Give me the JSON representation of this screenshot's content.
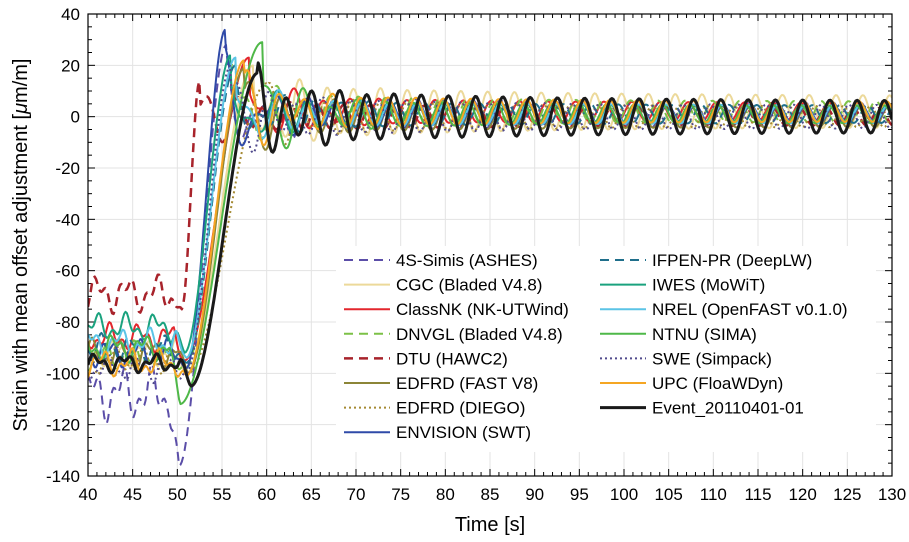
{
  "chart_data": {
    "type": "line",
    "title": "",
    "xlabel": "Time [s]",
    "ylabel": "Strain with mean offset adjustment [",
    "ylabel_mu": "μ",
    "ylabel_unit": "m/m]",
    "xlim": [
      40,
      130
    ],
    "ylim": [
      -140,
      40
    ],
    "xticks": [
      40,
      45,
      50,
      55,
      60,
      65,
      70,
      75,
      80,
      85,
      90,
      95,
      100,
      105,
      110,
      115,
      120,
      125,
      130
    ],
    "yticks": [
      -140,
      -120,
      -100,
      -80,
      -60,
      -40,
      -20,
      0,
      20,
      40
    ],
    "grid": true,
    "legend_position": "lower-right",
    "series": [
      {
        "name": "4S-Simis (ASHES)",
        "color": "#5b4ea8",
        "dash": "dashed",
        "width": 2,
        "pre": -108,
        "pre_amp": 12,
        "min_t": 50.2,
        "min_v": -136,
        "peak_t": 55.5,
        "peak_v": 28,
        "amp": 8,
        "period": 3.1,
        "phase": 0.7,
        "mean": 1
      },
      {
        "name": "CGC (Bladed V4.8)",
        "color": "#ecd99a",
        "dash": "solid",
        "width": 2,
        "pre": -92,
        "pre_amp": 6,
        "min_t": 51.0,
        "min_v": -100,
        "peak_t": 58.5,
        "peak_v": 20,
        "amp": 11,
        "period": 3.0,
        "phase": 1.6,
        "mean": 2
      },
      {
        "name": "ClassNK (NK-UTWind)",
        "color": "#e3262d",
        "dash": "solid",
        "width": 2,
        "pre": -86,
        "pre_amp": 6,
        "min_t": 50.8,
        "min_v": -95,
        "peak_t": 58.0,
        "peak_v": 23,
        "amp": 6,
        "period": 3.15,
        "phase": 2.4,
        "mean": 2
      },
      {
        "name": "DNVGL (Bladed V4.8)",
        "color": "#7cc147",
        "dash": "dashed",
        "width": 2,
        "pre": -93,
        "pre_amp": 6,
        "min_t": 51.0,
        "min_v": -98,
        "peak_t": 56.5,
        "peak_v": 22,
        "amp": 7,
        "period": 3.05,
        "phase": 3.1,
        "mean": 2
      },
      {
        "name": "DTU (HAWC2)",
        "color": "#a8232b",
        "dash": "dashed",
        "width": 2.5,
        "pre": -69,
        "pre_amp": 8,
        "min_t": 50.5,
        "min_v": -75,
        "peak_t": 52.5,
        "peak_v": 14,
        "amp": 6,
        "period": 3.0,
        "phase": 3.9,
        "mean": 0
      },
      {
        "name": "EDFRD (FAST V8)",
        "color": "#8c8537",
        "dash": "solid",
        "width": 2,
        "pre": -92,
        "pre_amp": 6,
        "min_t": 51.2,
        "min_v": -100,
        "peak_t": 57.5,
        "peak_v": 19,
        "amp": 7,
        "period": 3.1,
        "phase": 4.6,
        "mean": 0
      },
      {
        "name": "EDFRD (DIEGO)",
        "color": "#a58a33",
        "dash": "dotted",
        "width": 2,
        "pre": -95,
        "pre_amp": 6,
        "min_t": 51.2,
        "min_v": -100,
        "peak_t": 60.0,
        "peak_v": 13,
        "amp": 7,
        "period": 3.05,
        "phase": 5.3,
        "mean": 0
      },
      {
        "name": "ENVISION (SWT)",
        "color": "#2f4aa8",
        "dash": "solid",
        "width": 2,
        "pre": -92,
        "pre_amp": 6,
        "min_t": 51.0,
        "min_v": -98,
        "peak_t": 55.4,
        "peak_v": 34,
        "amp": 6,
        "period": 3.1,
        "phase": 0.3,
        "mean": 1
      },
      {
        "name": "IFPEN-PR (DeepLW)",
        "color": "#1f6f8b",
        "dash": "dashed",
        "width": 2,
        "pre": -90,
        "pre_amp": 6,
        "min_t": 51.0,
        "min_v": -96,
        "peak_t": 56.5,
        "peak_v": 20,
        "amp": 6,
        "period": 3.1,
        "phase": 1.1,
        "mean": 1
      },
      {
        "name": "IWES (MoWiT)",
        "color": "#1aa27e",
        "dash": "solid",
        "width": 2,
        "pre": -82,
        "pre_amp": 6,
        "min_t": 50.8,
        "min_v": -92,
        "peak_t": 56.0,
        "peak_v": 24,
        "amp": 6,
        "period": 3.1,
        "phase": 1.9,
        "mean": 1
      },
      {
        "name": "NREL (OpenFAST v0.1.0)",
        "color": "#5bc4e6",
        "dash": "solid",
        "width": 2,
        "pre": -88,
        "pre_amp": 6,
        "min_t": 51.0,
        "min_v": -94,
        "peak_t": 56.5,
        "peak_v": 23,
        "amp": 6,
        "period": 3.1,
        "phase": 2.7,
        "mean": 1
      },
      {
        "name": "NTNU (SIMA)",
        "color": "#4fb848",
        "dash": "solid",
        "width": 2,
        "pre": -90,
        "pre_amp": 6,
        "min_t": 50.3,
        "min_v": -112,
        "peak_t": 59.5,
        "peak_v": 29,
        "amp": 6,
        "period": 3.1,
        "phase": 3.5,
        "mean": 1
      },
      {
        "name": "SWE (Simpack)",
        "color": "#514a8c",
        "dash": "dotted",
        "width": 2,
        "pre": -98,
        "pre_amp": 6,
        "min_t": 51.0,
        "min_v": -100,
        "peak_t": 56.0,
        "peak_v": 20,
        "amp": 8,
        "period": 3.1,
        "phase": 4.3,
        "mean": 0
      },
      {
        "name": "UPC (FloaWDyn)",
        "color": "#f5a623",
        "dash": "solid",
        "width": 2,
        "pre": -96,
        "pre_amp": 6,
        "min_t": 51.0,
        "min_v": -101,
        "peak_t": 57.5,
        "peak_v": 22,
        "amp": 7,
        "period": 3.1,
        "phase": 5.1,
        "mean": 2
      },
      {
        "name": "Event_20110401-01",
        "color": "#1a1a1a",
        "dash": "solid",
        "width": 3,
        "pre": -96,
        "pre_amp": 4,
        "min_t": 51.5,
        "min_v": -105,
        "peak_t": 59.0,
        "peak_v": 17,
        "amp": 11,
        "period": 3.05,
        "phase": 0.0,
        "mean": 0
      }
    ]
  }
}
